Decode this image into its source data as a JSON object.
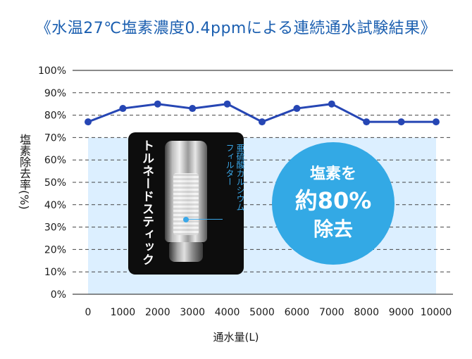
{
  "title": "《水温27℃塩素濃度0.4ppmによる連続通水試験結果》",
  "product_label": "トルネードスティック",
  "filter_label_lines": [
    "亜硫酸カルシウム",
    "フィルター"
  ],
  "badge_lines": [
    "塩素を",
    "約80%",
    "除去"
  ],
  "colors": {
    "title": "#1b5fb0",
    "line": "#2646b4",
    "badge": "#33a9e5",
    "plot_fill": "#dcefff",
    "panel": "#0d0d0d"
  },
  "chart_data": {
    "type": "line",
    "title": "《水温27℃塩素濃度0.4ppmによる連続通水試験結果》",
    "xlabel": "通水量(L)",
    "ylabel": "塩素除去率(%)",
    "x": [
      0,
      1000,
      2000,
      3000,
      4000,
      5000,
      6000,
      7000,
      8000,
      9000,
      10000
    ],
    "x_tick_labels": [
      "0",
      "1000",
      "2000",
      "3000",
      "4000",
      "5000",
      "6000",
      "7000",
      "8000",
      "9000",
      "10000"
    ],
    "y_tick_labels": [
      "0%",
      "10%",
      "20%",
      "30%",
      "40%",
      "50%",
      "60%",
      "70%",
      "80%",
      "90%",
      "100%"
    ],
    "ylim": [
      0,
      100
    ],
    "xlim": [
      0,
      10000
    ],
    "series": [
      {
        "values": [
          77,
          83,
          85,
          83,
          85,
          77,
          83,
          85,
          77,
          77,
          77
        ]
      }
    ],
    "grid": "horizontal dashed",
    "legend": "none"
  }
}
